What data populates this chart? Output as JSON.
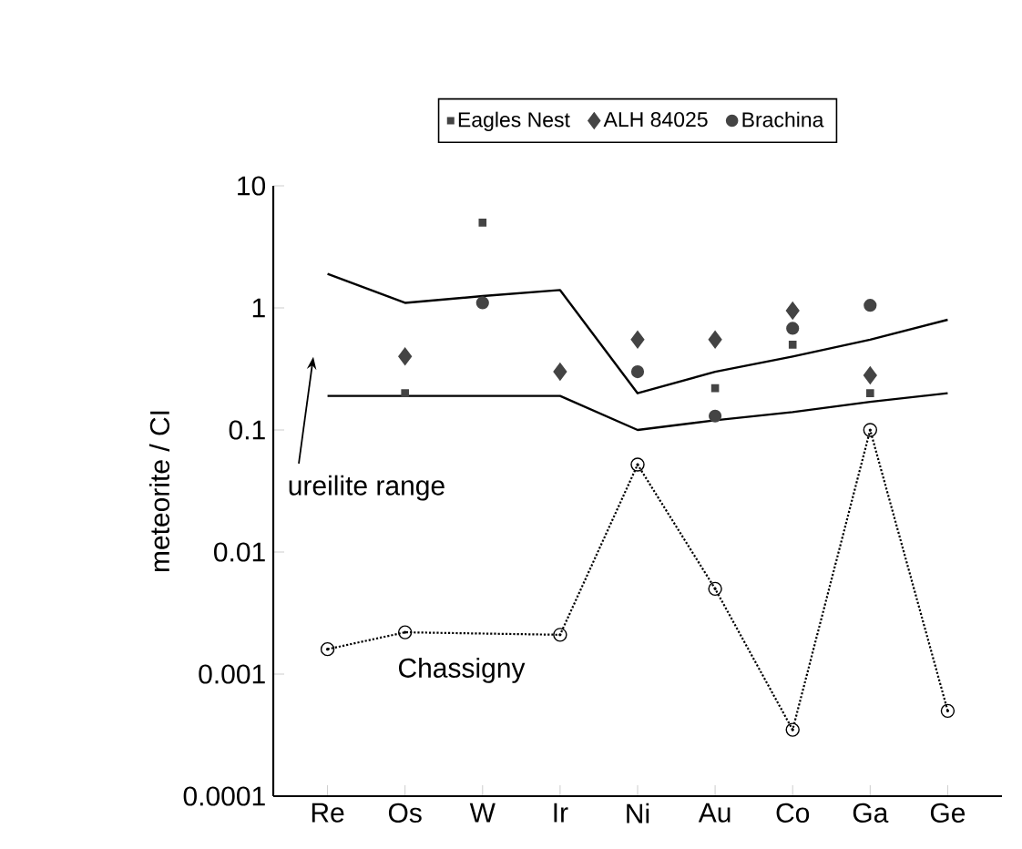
{
  "chart_data": {
    "type": "scatter",
    "ylabel": "meteorite / CI",
    "categories": [
      "Re",
      "Os",
      "W",
      "Ir",
      "Ni",
      "Au",
      "Co",
      "Ga",
      "Ge"
    ],
    "log": "y",
    "ylim": [
      0.0001,
      10
    ],
    "yticks": [
      10,
      1,
      0.1,
      0.01,
      0.001,
      0.0001
    ],
    "grid": false,
    "legend": "top",
    "annotations": [
      "ureilite range"
    ],
    "series": [
      {
        "type": "line",
        "color": "#000000",
        "marker": "none",
        "line_style": "solid",
        "values": [
          1.9,
          1.1,
          1.25,
          1.4,
          0.2,
          0.3,
          0.4,
          0.55,
          0.8
        ]
      },
      {
        "type": "line",
        "color": "#000000",
        "marker": "none",
        "line_style": "solid",
        "values": [
          0.19,
          0.19,
          0.19,
          0.19,
          0.1,
          0.12,
          0.14,
          0.17,
          0.2
        ]
      },
      {
        "name": "Chassigny",
        "type": "line",
        "color": "#000000",
        "marker": "circle",
        "line_style": "dotted",
        "values": [
          0.0016,
          0.0022,
          null,
          0.0021,
          0.052,
          0.005,
          0.00035,
          0.1,
          0.0005
        ]
      },
      {
        "name": "Eagles Nest",
        "type": "scatter",
        "color": "#444444",
        "marker": "square",
        "values": [
          null,
          0.2,
          5,
          null,
          null,
          0.22,
          0.5,
          0.2,
          null
        ]
      },
      {
        "name": "ALH 84025",
        "type": "scatter",
        "color": "#444444",
        "marker": "diamond",
        "values": [
          null,
          0.4,
          null,
          0.3,
          0.55,
          0.55,
          0.95,
          0.28,
          null
        ]
      },
      {
        "name": "Brachina",
        "type": "scatter",
        "color": "#444444",
        "marker": "circle",
        "values": [
          null,
          null,
          1.1,
          null,
          0.3,
          0.13,
          0.68,
          1.05,
          null
        ]
      }
    ]
  }
}
